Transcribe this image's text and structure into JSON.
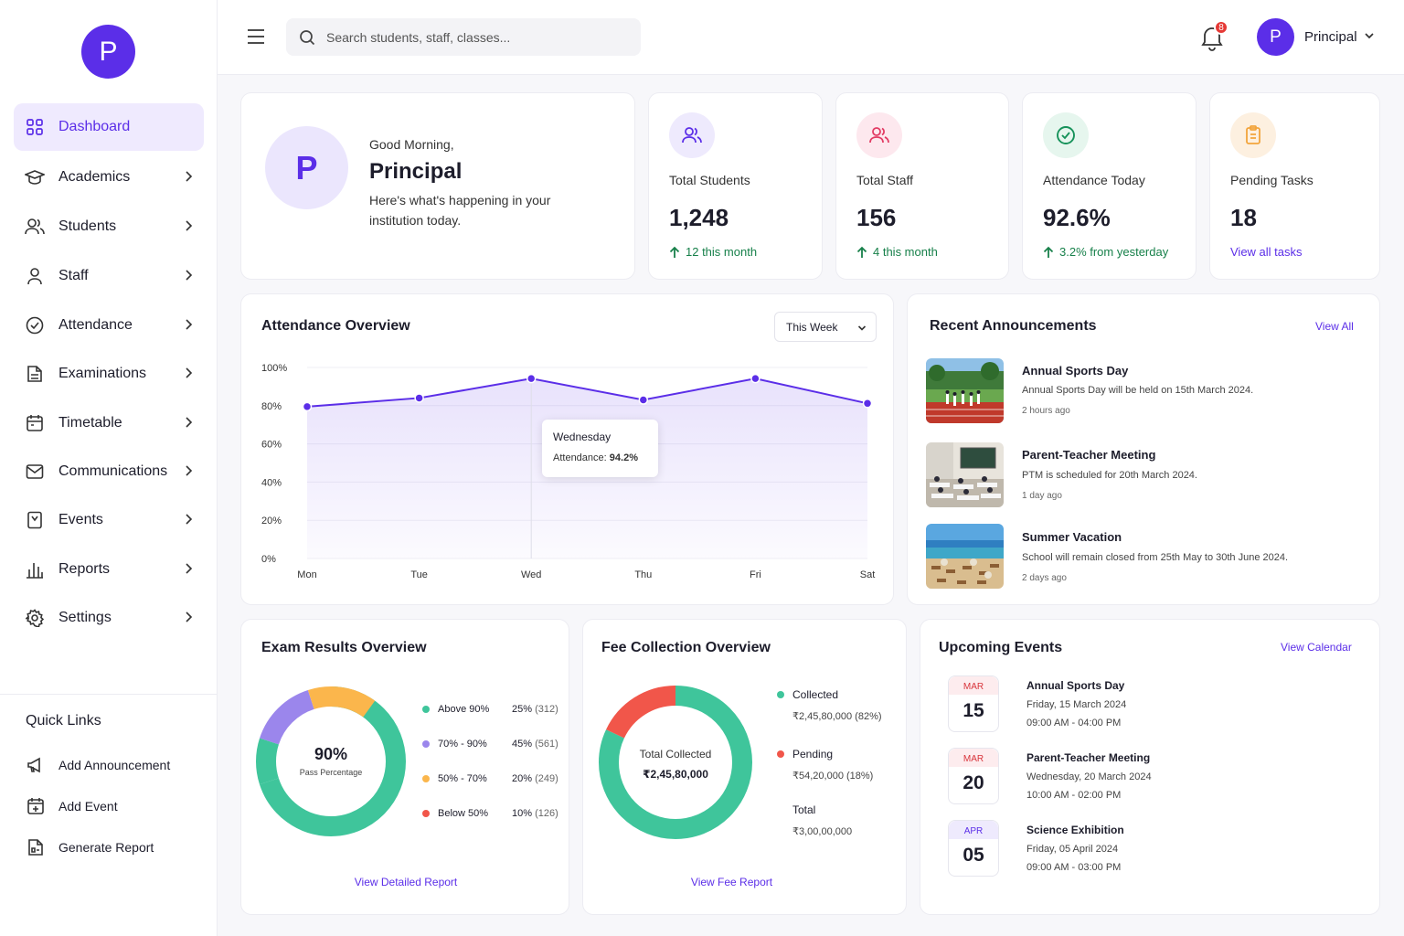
{
  "sidebar": {
    "logo_letter": "P",
    "items": [
      {
        "label": "Dashboard",
        "icon": "grid-icon"
      },
      {
        "label": "Academics",
        "icon": "graduation-cap-icon"
      },
      {
        "label": "Students",
        "icon": "users-icon"
      },
      {
        "label": "Staff",
        "icon": "user-icon"
      },
      {
        "label": "Attendance",
        "icon": "check-circle-icon"
      },
      {
        "label": "Examinations",
        "icon": "document-icon"
      },
      {
        "label": "Timetable",
        "icon": "calendar-icon"
      },
      {
        "label": "Communications",
        "icon": "mail-icon"
      },
      {
        "label": "Events",
        "icon": "bookmark-icon"
      },
      {
        "label": "Reports",
        "icon": "bar-chart-icon"
      },
      {
        "label": "Settings",
        "icon": "gear-icon"
      }
    ],
    "quick_links_title": "Quick Links",
    "quick_links": [
      {
        "label": "Add Announcement",
        "icon": "megaphone-icon"
      },
      {
        "label": "Add Event",
        "icon": "calendar-plus-icon"
      },
      {
        "label": "Generate Report",
        "icon": "report-icon"
      }
    ]
  },
  "topbar": {
    "search_placeholder": "Search students, staff, classes...",
    "notification_count": "8",
    "user_initial": "P",
    "user_name": "Principal"
  },
  "welcome": {
    "avatar_letter": "P",
    "greeting": "Good Morning,",
    "name": "Principal",
    "message_line1": "Here's what's happening in your",
    "message_line2": "institution today."
  },
  "stats": [
    {
      "label": "Total Students",
      "value": "1,248",
      "delta": "12 this month",
      "icon": "users-icon",
      "color": "#5b2ee8",
      "bg": "#eeeafd"
    },
    {
      "label": "Total Staff",
      "value": "156",
      "delta": "4 this month",
      "icon": "users-icon",
      "color": "#e23b63",
      "bg": "#fde8ee"
    },
    {
      "label": "Attendance Today",
      "value": "92.6%",
      "delta": "3.2% from yesterday",
      "icon": "check-circle-icon",
      "color": "#16925a",
      "bg": "#e6f6ee"
    },
    {
      "label": "Pending Tasks",
      "value": "18",
      "delta": "View all tasks",
      "icon": "clipboard-icon",
      "color": "#f2a43c",
      "bg": "#fdf0e0"
    }
  ],
  "attendance": {
    "title": "Attendance Overview",
    "range_select": "This Week",
    "tooltip_day": "Wednesday",
    "tooltip_label": "Attendance:",
    "tooltip_value": "94.2%"
  },
  "chart_data": {
    "type": "area",
    "categories": [
      "Mon",
      "Tue",
      "Wed",
      "Thu",
      "Fri",
      "Sat"
    ],
    "series": [
      {
        "values": [
          79.5,
          84,
          94.2,
          83,
          94.2,
          81.2
        ]
      }
    ],
    "ylim": [
      0,
      100
    ],
    "yticks": [
      "100%",
      "80%",
      "60%",
      "40%",
      "20%",
      "0%"
    ],
    "title": "Attendance Overview",
    "xlabel": "",
    "ylabel": "",
    "color": "#5b2ee8"
  },
  "announcements": {
    "title": "Recent Announcements",
    "view_all": "View All",
    "items": [
      {
        "title": "Annual Sports Day",
        "desc": "Annual Sports Day will be held on 15th March 2024.",
        "time": "2 hours ago",
        "image": "sports-track-image"
      },
      {
        "title": "Parent-Teacher Meeting",
        "desc": "PTM is scheduled for 20th March 2024.",
        "time": "1 day ago",
        "image": "classroom-image"
      },
      {
        "title": "Summer Vacation",
        "desc": "School will remain closed from 25th May to 30th June 2024.",
        "time": "2 days ago",
        "image": "beach-image"
      }
    ]
  },
  "exam": {
    "title": "Exam Results Overview",
    "center_value": "90%",
    "center_label": "Pass Percentage",
    "legend": [
      {
        "label": "Above 90%",
        "pct": "25%",
        "count": "(312)",
        "color": "#3fc59b"
      },
      {
        "label": "70% - 90%",
        "pct": "45%",
        "count": "(561)",
        "color": "#9b86ec"
      },
      {
        "label": "50% - 70%",
        "pct": "20%",
        "count": "(249)",
        "color": "#fbb64c"
      },
      {
        "label": "Below 50%",
        "pct": "10%",
        "count": "(126)",
        "color": "#f1564a"
      }
    ],
    "link": "View Detailed Report"
  },
  "fee": {
    "title": "Fee Collection Overview",
    "center_label": "Total Collected",
    "center_value": "₹2,45,80,000",
    "collected_label": "Collected",
    "collected_value": "₹2,45,80,000 (82%)",
    "pending_label": "Pending",
    "pending_value": "₹54,20,000 (18%)",
    "total_label": "Total",
    "total_value": "₹3,00,00,000",
    "collected_color": "#3fc59b",
    "pending_color": "#f1564a",
    "link": "View Fee Report"
  },
  "events": {
    "title": "Upcoming Events",
    "view_calendar": "View Calendar",
    "items": [
      {
        "mon": "MAR",
        "day": "15",
        "title": "Annual Sports Day",
        "date": "Friday, 15 March 2024",
        "time": "09:00 AM - 04:00 PM",
        "mon_color": "#d8343b",
        "mon_bg": "#fdecee"
      },
      {
        "mon": "MAR",
        "day": "20",
        "title": "Parent-Teacher Meeting",
        "date": "Wednesday, 20 March 2024",
        "time": "10:00 AM - 02:00 PM",
        "mon_color": "#d8343b",
        "mon_bg": "#fdecee"
      },
      {
        "mon": "APR",
        "day": "05",
        "title": "Science Exhibition",
        "date": "Friday, 05 April 2024",
        "time": "09:00 AM - 03:00 PM",
        "mon_color": "#5b2ee8",
        "mon_bg": "#eeeafd"
      }
    ]
  }
}
